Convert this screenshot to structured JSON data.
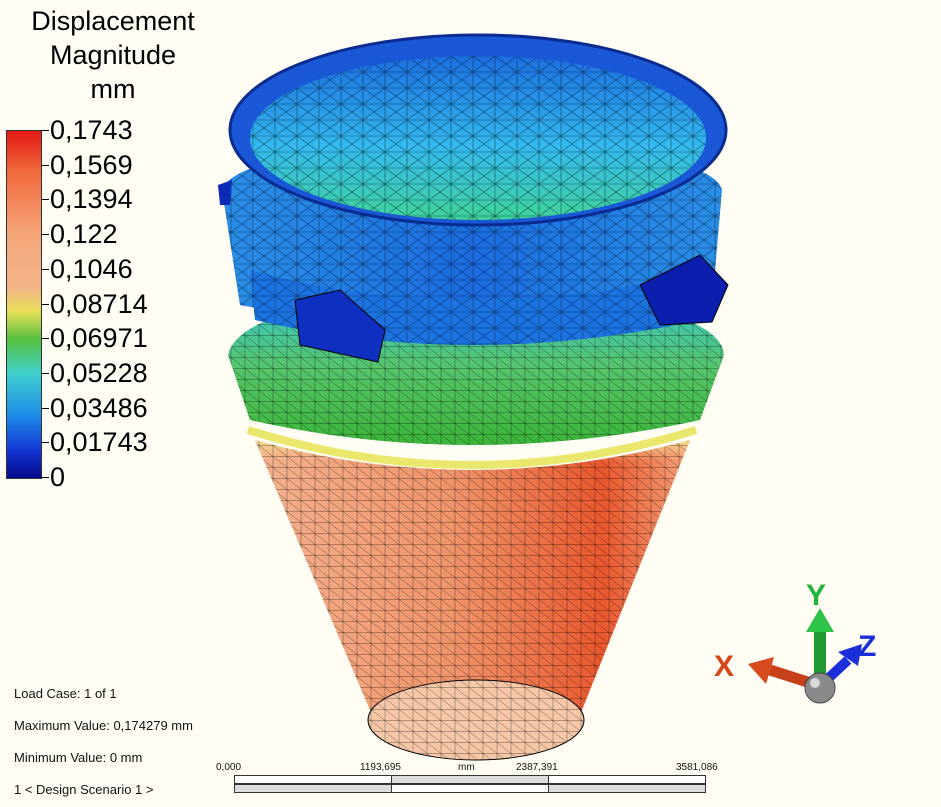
{
  "legend": {
    "title_line1": "Displacement",
    "title_line2": "Magnitude",
    "unit": "mm",
    "ticks": [
      "0,1743",
      "0,1569",
      "0,1394",
      "0,122",
      "0,1046",
      "0,08714",
      "0,06971",
      "0,05228",
      "0,03486",
      "0,01743",
      "0"
    ],
    "color_top": "#e41a14",
    "color_bottom": "#050a8c"
  },
  "info": {
    "load_case": "Load Case:  1 of 1",
    "max_value": "Maximum Value: 0,174279 mm",
    "min_value": "Minimum Value: 0 mm",
    "scenario": "1 < Design Scenario 1 >"
  },
  "scale": {
    "labels": [
      "0,000",
      "1193,695",
      "2387,391",
      "3581,086"
    ],
    "unit": "mm"
  },
  "axes": {
    "x": "X",
    "y": "Y",
    "z": "Z",
    "x_color": "#d9461a",
    "y_color": "#22b43a",
    "z_color": "#1a2fd9"
  }
}
